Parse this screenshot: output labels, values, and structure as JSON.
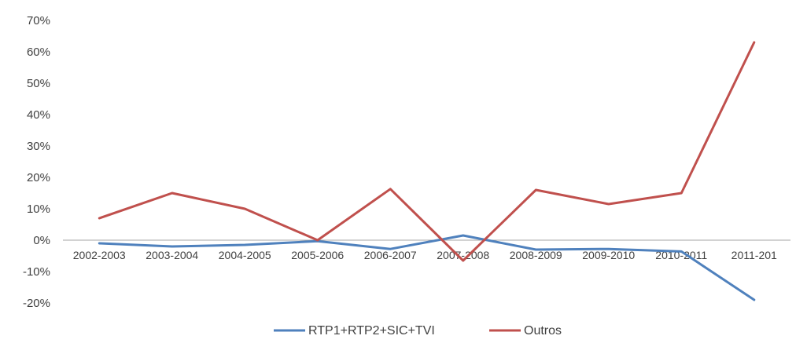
{
  "chart_data": {
    "type": "line",
    "categories": [
      "2002-2003",
      "2003-2004",
      "2004-2005",
      "2005-2006",
      "2006-2007",
      "2007-2008",
      "2008-2009",
      "2009-2010",
      "2010-2011",
      "2011-201"
    ],
    "series": [
      {
        "name": "RTP1+RTP2+SIC+TVI",
        "color": "#4f81bd",
        "values": [
          -1,
          -2,
          -1.5,
          -0.3,
          -2.8,
          1.5,
          -3,
          -2.8,
          -3.6,
          -19
        ]
      },
      {
        "name": "Outros",
        "color": "#c0504d",
        "values": [
          7,
          15,
          10,
          0,
          16.3,
          -6.5,
          16,
          11.5,
          15,
          63
        ]
      }
    ],
    "yticks": [
      "70%",
      "60%",
      "50%",
      "40%",
      "30%",
      "20%",
      "10%",
      "0%",
      "-10%",
      "-20%"
    ],
    "ylim": [
      -20,
      70
    ],
    "grid": false,
    "legend": "bottom"
  }
}
